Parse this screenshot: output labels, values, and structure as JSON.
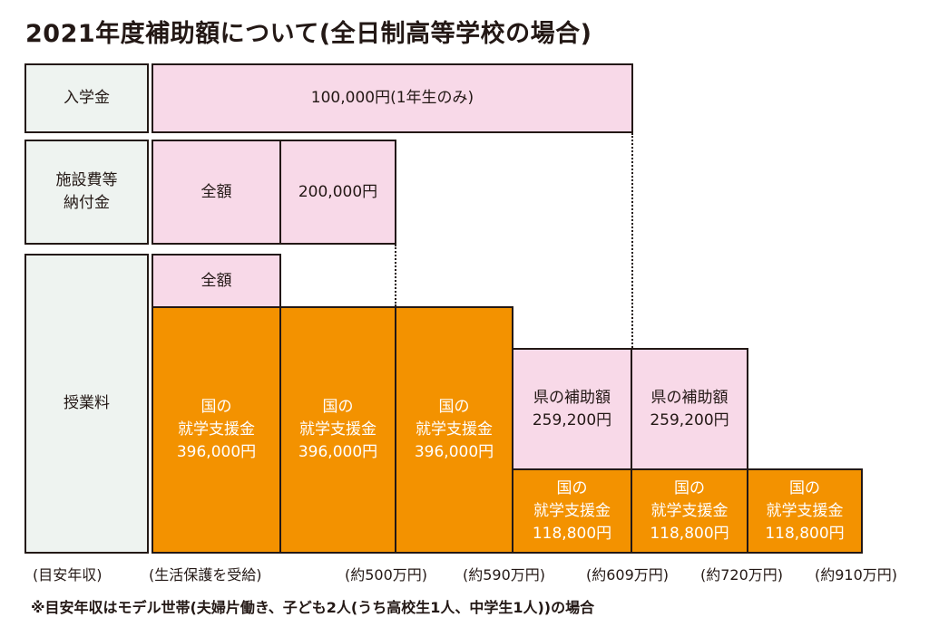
{
  "title": "2021年度補助額について(全日制高等学校の場合)",
  "row_headers": {
    "entrance": "入学金",
    "facility": "施設費等\n納付金",
    "tuition": "授業料"
  },
  "entrance": {
    "amount": "100,000円(1年生のみ)"
  },
  "facility": {
    "full": "全額",
    "amount": "200,000円"
  },
  "tuition": {
    "full": "全額",
    "national_large": "国の\n就学支援金\n396,000円",
    "prefecture": "県の補助額\n259,200円",
    "national_small": "国の\n就学支援金\n118,800円"
  },
  "income_labels": {
    "header": "(目安年収)",
    "c1": "(生活保護を受給)",
    "c3": "(約500万円)",
    "c4": "(約590万円)",
    "c5": "(約609万円)",
    "c6": "(約720万円)",
    "c7": "(約910万円)"
  },
  "note": "※目安年収はモデル世帯(夫婦片働き、子ども2人(うち高校生1人、中学生1人))の場合",
  "colors": {
    "pink": "#f8d9e8",
    "orange": "#f39200",
    "header_bg": "#eef3f0",
    "text": "#231815"
  }
}
